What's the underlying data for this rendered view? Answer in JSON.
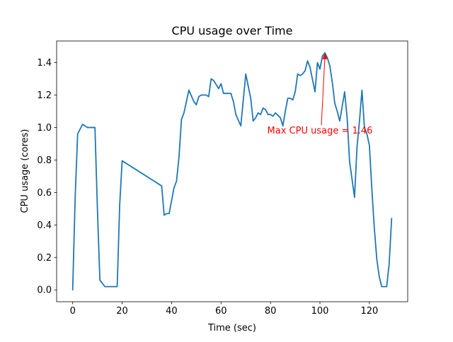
{
  "chart_data": {
    "type": "line",
    "title": "CPU usage over Time",
    "xlabel": "Time (sec)",
    "ylabel": "CPU usage (cores)",
    "xlim": [
      -6.5,
      135.5
    ],
    "ylim": [
      -0.073,
      1.533
    ],
    "xticks": [
      0,
      20,
      40,
      60,
      80,
      100,
      120
    ],
    "yticks": [
      0.0,
      0.2,
      0.4,
      0.6,
      0.8,
      1.0,
      1.2,
      1.4
    ],
    "ytick_labels": [
      "0.0",
      "0.2",
      "0.4",
      "0.6",
      "0.8",
      "1.0",
      "1.2",
      "1.4"
    ],
    "grid": false,
    "line_color": "#1f77b4",
    "series": [
      {
        "x": [
          0,
          1,
          2,
          4,
          6,
          8,
          9,
          10,
          11,
          13,
          15,
          17,
          18,
          19,
          20,
          36,
          37,
          38,
          39,
          40,
          41,
          42,
          43,
          44,
          45,
          47,
          49,
          50,
          51,
          52,
          54,
          55,
          56,
          57,
          59,
          60,
          61,
          62,
          64,
          65,
          66,
          68,
          70,
          72,
          73,
          74,
          75,
          76,
          77,
          78,
          79,
          80,
          81,
          82,
          84,
          85,
          86,
          87,
          88,
          89,
          90,
          91,
          92,
          93,
          94,
          95,
          96,
          98,
          99,
          100,
          101,
          102,
          103,
          104,
          105,
          106,
          107,
          108,
          110,
          111,
          112,
          114,
          115,
          116,
          117,
          118,
          119,
          120,
          121,
          122,
          123,
          124,
          125,
          126,
          127,
          128,
          129
        ],
        "y": [
          0.0,
          0.57,
          0.96,
          1.02,
          1.0,
          1.0,
          1.0,
          0.5,
          0.06,
          0.02,
          0.02,
          0.02,
          0.02,
          0.52,
          0.795,
          0.64,
          0.46,
          0.47,
          0.47,
          0.55,
          0.63,
          0.67,
          0.82,
          1.05,
          1.09,
          1.23,
          1.16,
          1.14,
          1.19,
          1.2,
          1.2,
          1.19,
          1.3,
          1.29,
          1.24,
          1.27,
          1.21,
          1.21,
          1.21,
          1.16,
          1.08,
          1.01,
          1.33,
          1.18,
          1.04,
          1.06,
          1.09,
          1.08,
          1.12,
          1.11,
          1.08,
          1.08,
          1.07,
          1.09,
          1.06,
          1.01,
          1.1,
          1.18,
          1.18,
          1.17,
          1.22,
          1.33,
          1.32,
          1.33,
          1.35,
          1.41,
          1.37,
          1.22,
          1.4,
          1.36,
          1.44,
          1.46,
          1.43,
          1.38,
          1.28,
          1.15,
          1.1,
          1.04,
          1.22,
          1.06,
          0.79,
          0.57,
          0.88,
          1.04,
          1.23,
          1.0,
          0.96,
          0.89,
          0.62,
          0.38,
          0.19,
          0.08,
          0.02,
          0.02,
          0.02,
          0.16,
          0.44
        ]
      }
    ],
    "annotations": [
      {
        "text": "Max CPU usage = 1.46",
        "color": "#ff0000",
        "xy": [
          102,
          1.46
        ],
        "xytext": [
          100,
          0.98
        ]
      }
    ]
  }
}
